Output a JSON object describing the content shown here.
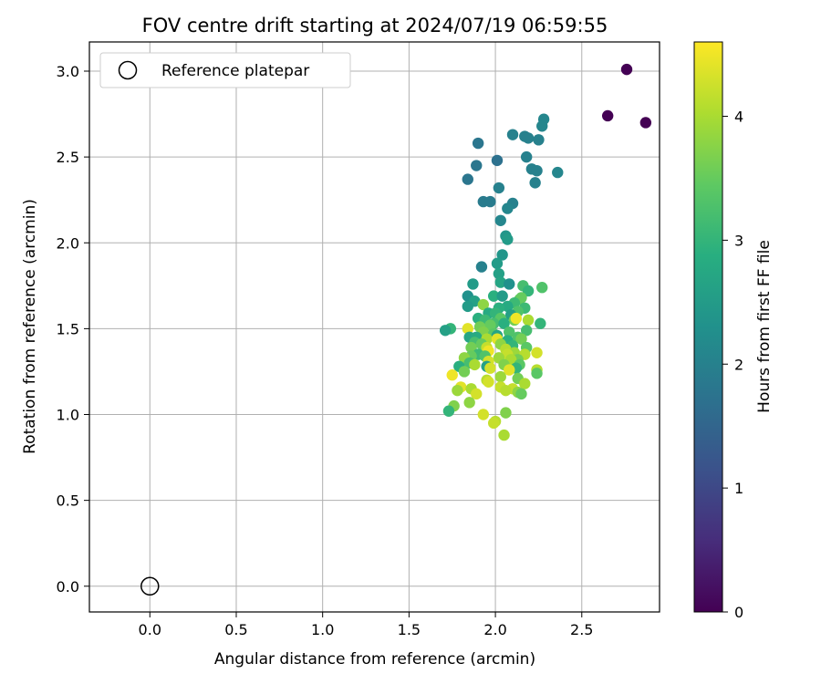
{
  "chart_data": {
    "type": "scatter",
    "title": "FOV centre drift starting at 2024/07/19 06:59:55",
    "xlabel": "Angular distance from reference (arcmin)",
    "ylabel": "Rotation from reference (arcmin)",
    "xlim": [
      -0.35,
      2.95
    ],
    "ylim": [
      -0.15,
      3.17
    ],
    "xticks": [
      "0.0",
      "0.5",
      "1.0",
      "1.5",
      "2.0",
      "2.5"
    ],
    "xtick_values": [
      0.0,
      0.5,
      1.0,
      1.5,
      2.0,
      2.5
    ],
    "yticks": [
      "0.0",
      "0.5",
      "1.0",
      "1.5",
      "2.0",
      "2.5",
      "3.0"
    ],
    "ytick_values": [
      0.0,
      0.5,
      1.0,
      1.5,
      2.0,
      2.5,
      3.0
    ],
    "grid": true,
    "legend": {
      "position": "top-left",
      "entries": [
        "Reference platepar"
      ]
    },
    "colormap": "viridis",
    "colorbar": {
      "label": "Hours from first FF file",
      "range": [
        0,
        4.6
      ],
      "ticks": [
        "0",
        "1",
        "2",
        "3",
        "4"
      ],
      "tick_values": [
        0,
        1,
        2,
        3,
        4
      ]
    },
    "reference_point": {
      "x": 0.0,
      "y": 0.0
    },
    "points": [
      [
        2.76,
        3.01,
        0.0
      ],
      [
        2.65,
        2.74,
        0.0
      ],
      [
        2.87,
        2.7,
        0.0
      ],
      [
        2.28,
        2.72,
        2.1
      ],
      [
        2.27,
        2.68,
        2.1
      ],
      [
        2.1,
        2.63,
        2.0
      ],
      [
        2.17,
        2.62,
        2.0
      ],
      [
        2.19,
        2.61,
        2.0
      ],
      [
        2.25,
        2.6,
        2.0
      ],
      [
        1.9,
        2.58,
        1.8
      ],
      [
        2.18,
        2.5,
        2.0
      ],
      [
        2.01,
        2.48,
        1.7
      ],
      [
        1.89,
        2.45,
        1.8
      ],
      [
        2.21,
        2.43,
        2.0
      ],
      [
        2.24,
        2.42,
        2.0
      ],
      [
        2.36,
        2.41,
        2.1
      ],
      [
        1.84,
        2.37,
        1.8
      ],
      [
        2.23,
        2.35,
        2.0
      ],
      [
        2.02,
        2.32,
        2.0
      ],
      [
        1.93,
        2.24,
        1.9
      ],
      [
        1.97,
        2.24,
        1.9
      ],
      [
        2.1,
        2.23,
        2.0
      ],
      [
        2.07,
        2.2,
        2.1
      ],
      [
        2.03,
        2.13,
        2.1
      ],
      [
        2.06,
        2.04,
        2.4
      ],
      [
        2.07,
        2.02,
        2.5
      ],
      [
        2.04,
        1.93,
        2.4
      ],
      [
        2.01,
        1.88,
        2.5
      ],
      [
        1.92,
        1.86,
        2.0
      ],
      [
        2.02,
        1.82,
        2.6
      ],
      [
        2.03,
        1.77,
        2.7
      ],
      [
        2.08,
        1.76,
        2.3
      ],
      [
        1.87,
        1.76,
        2.5
      ],
      [
        2.16,
        1.75,
        3.2
      ],
      [
        2.27,
        1.74,
        3.3
      ],
      [
        2.19,
        1.72,
        3.0
      ],
      [
        1.84,
        1.69,
        2.3
      ],
      [
        1.99,
        1.69,
        2.9
      ],
      [
        2.04,
        1.69,
        2.5
      ],
      [
        1.88,
        1.66,
        2.6
      ],
      [
        2.14,
        1.67,
        3.4
      ],
      [
        2.15,
        1.68,
        3.5
      ],
      [
        2.11,
        1.65,
        3.1
      ],
      [
        1.93,
        1.64,
        3.8
      ],
      [
        1.84,
        1.63,
        2.5
      ],
      [
        2.07,
        1.63,
        2.8
      ],
      [
        2.02,
        1.62,
        2.9
      ],
      [
        2.17,
        1.62,
        3.1
      ],
      [
        2.13,
        1.6,
        3.3
      ],
      [
        1.96,
        1.59,
        2.8
      ],
      [
        2.0,
        1.59,
        3.0
      ],
      [
        2.09,
        1.58,
        2.6
      ],
      [
        1.9,
        1.56,
        2.9
      ],
      [
        1.94,
        1.55,
        3.1
      ],
      [
        2.03,
        1.56,
        3.4
      ],
      [
        2.11,
        1.55,
        3.6
      ],
      [
        2.19,
        1.55,
        4.0
      ],
      [
        2.12,
        1.56,
        4.5
      ],
      [
        2.26,
        1.53,
        3.0
      ],
      [
        1.99,
        1.53,
        3.2
      ],
      [
        1.97,
        1.52,
        3.5
      ],
      [
        2.05,
        1.53,
        2.9
      ],
      [
        1.91,
        1.51,
        3.6
      ],
      [
        1.84,
        1.5,
        4.4
      ],
      [
        1.74,
        1.5,
        3.0
      ],
      [
        1.71,
        1.49,
        2.6
      ],
      [
        2.18,
        1.49,
        3.2
      ],
      [
        2.08,
        1.48,
        3.3
      ],
      [
        1.93,
        1.48,
        3.7
      ],
      [
        1.99,
        1.47,
        3.4
      ],
      [
        2.01,
        1.46,
        2.7
      ],
      [
        1.85,
        1.45,
        2.7
      ],
      [
        1.89,
        1.45,
        2.8
      ],
      [
        2.13,
        1.45,
        3.3
      ],
      [
        2.15,
        1.44,
        3.6
      ],
      [
        1.95,
        1.44,
        4.0
      ],
      [
        2.01,
        1.44,
        4.4
      ],
      [
        2.07,
        1.43,
        2.9
      ],
      [
        1.88,
        1.42,
        3.2
      ],
      [
        1.92,
        1.41,
        3.5
      ],
      [
        2.03,
        1.41,
        3.8
      ],
      [
        2.1,
        1.4,
        3.0
      ],
      [
        1.86,
        1.39,
        3.6
      ],
      [
        1.95,
        1.39,
        4.2
      ],
      [
        2.18,
        1.39,
        3.4
      ],
      [
        2.06,
        1.38,
        4.1
      ],
      [
        1.96,
        1.37,
        4.5
      ],
      [
        2.11,
        1.36,
        3.9
      ],
      [
        2.24,
        1.36,
        4.3
      ],
      [
        2.17,
        1.35,
        4.1
      ],
      [
        2.07,
        1.35,
        4.2
      ],
      [
        1.9,
        1.35,
        3.1
      ],
      [
        1.86,
        1.34,
        3.5
      ],
      [
        1.94,
        1.34,
        3.3
      ],
      [
        2.02,
        1.33,
        3.9
      ],
      [
        1.82,
        1.33,
        3.8
      ],
      [
        2.13,
        1.32,
        3.6
      ],
      [
        2.09,
        1.32,
        4.0
      ],
      [
        1.96,
        1.31,
        4.3
      ],
      [
        1.85,
        1.3,
        3.2
      ],
      [
        2.14,
        1.29,
        3.4
      ],
      [
        1.88,
        1.29,
        4.0
      ],
      [
        2.05,
        1.29,
        3.7
      ],
      [
        1.79,
        1.28,
        2.9
      ],
      [
        1.95,
        1.28,
        2.6
      ],
      [
        2.12,
        1.27,
        3.0
      ],
      [
        1.97,
        1.27,
        4.3
      ],
      [
        2.08,
        1.26,
        4.4
      ],
      [
        2.24,
        1.26,
        4.1
      ],
      [
        1.82,
        1.25,
        3.6
      ],
      [
        2.24,
        1.24,
        3.4
      ],
      [
        1.75,
        1.23,
        4.5
      ],
      [
        2.03,
        1.22,
        3.9
      ],
      [
        2.13,
        1.21,
        3.6
      ],
      [
        1.95,
        1.2,
        4.1
      ],
      [
        1.96,
        1.19,
        4.3
      ],
      [
        2.17,
        1.18,
        4.0
      ],
      [
        1.8,
        1.16,
        4.4
      ],
      [
        2.03,
        1.16,
        4.2
      ],
      [
        1.86,
        1.15,
        4.0
      ],
      [
        2.1,
        1.15,
        4.2
      ],
      [
        2.06,
        1.14,
        4.1
      ],
      [
        1.78,
        1.14,
        3.9
      ],
      [
        2.13,
        1.13,
        3.8
      ],
      [
        2.15,
        1.12,
        3.5
      ],
      [
        1.89,
        1.12,
        4.3
      ],
      [
        1.85,
        1.07,
        3.8
      ],
      [
        1.76,
        1.05,
        3.7
      ],
      [
        1.73,
        1.02,
        3.0
      ],
      [
        2.06,
        1.01,
        3.7
      ],
      [
        1.93,
        1.0,
        4.3
      ],
      [
        2.0,
        0.96,
        4.1
      ],
      [
        1.99,
        0.95,
        4.2
      ],
      [
        2.05,
        0.88,
        4.0
      ]
    ]
  }
}
